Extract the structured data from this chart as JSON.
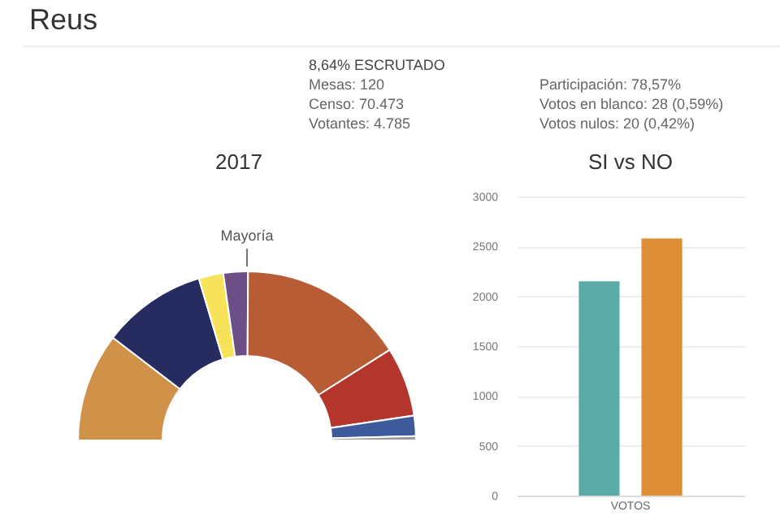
{
  "chart_data": [
    {
      "type": "other",
      "title": "Reus",
      "annotations": [
        "8,64% ESCRUTADO",
        "Mesas: 120",
        "Censo: 70.473",
        "Votantes: 4.785",
        "Participación: 78,57%",
        "Votos en blanco: 28 (0,59%)",
        "Votos nulos: 20 (0,42%)"
      ]
    },
    {
      "type": "donut",
      "title": "2017",
      "categories": [
        null,
        null,
        null,
        null,
        null,
        null,
        null,
        null
      ],
      "values": [
        20.8,
        20.0,
        4.7,
        4.7,
        31.8,
        13.3,
        3.9,
        0.8
      ],
      "colors": [
        "#cf9248",
        "#262c60",
        "#f7e35a",
        "#6c4f87",
        "#b85c35",
        "#b3352c",
        "#3e5a9a",
        "#999999"
      ],
      "annotations": [
        "Mayoría"
      ]
    },
    {
      "type": "bar",
      "title": "SI vs NO",
      "categories": [
        "VOTOS"
      ],
      "series": [
        {
          "color": "#5aaba6",
          "values": [
            2150
          ]
        },
        {
          "color": "#de8f36",
          "values": [
            2580
          ]
        }
      ],
      "ylim": [
        0,
        3000
      ],
      "yticks": [
        0,
        500,
        1000,
        1500,
        2000,
        2500,
        3000
      ],
      "grid": "y"
    }
  ]
}
